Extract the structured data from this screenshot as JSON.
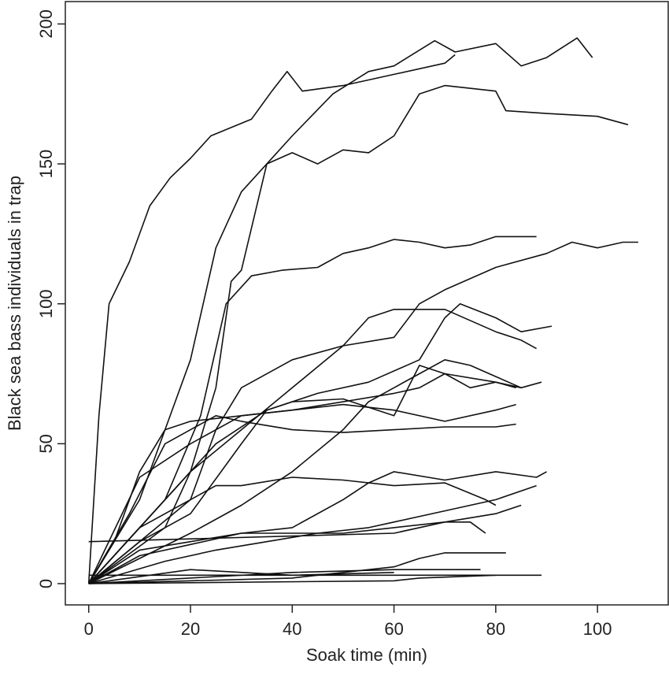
{
  "chart_data": {
    "type": "line",
    "x_label": "Soak time (min)",
    "y_label": "Black sea bass individuals in trap",
    "xlim": [
      -4.6,
      113.9
    ],
    "ylim": [
      -7.6,
      208
    ],
    "xticks": [
      0,
      20,
      40,
      60,
      80,
      100
    ],
    "yticks": [
      0,
      50,
      100,
      150,
      200
    ],
    "color": "#111111",
    "series": [
      {
        "x": [
          0,
          2,
          4,
          8,
          12,
          16,
          20,
          24,
          28,
          32,
          36,
          39,
          42,
          50,
          60,
          70,
          72
        ],
        "values": [
          0,
          60,
          100,
          115,
          135,
          145,
          152,
          160,
          163,
          166,
          176,
          183,
          176,
          178,
          182,
          186,
          189
        ]
      },
      {
        "x": [
          0,
          10,
          20,
          25,
          30,
          35,
          40,
          45,
          50,
          55,
          60,
          65,
          70,
          80,
          82,
          90,
          100,
          106
        ],
        "values": [
          0,
          30,
          80,
          120,
          140,
          150,
          154,
          150,
          155,
          154,
          160,
          175,
          178,
          176,
          169,
          168,
          167,
          164
        ]
      },
      {
        "x": [
          0,
          15,
          20,
          25,
          28,
          30,
          35,
          40,
          48,
          55,
          60,
          68,
          72,
          80,
          85,
          90,
          96,
          99
        ],
        "values": [
          0,
          20,
          40,
          70,
          108,
          112,
          150,
          160,
          175,
          183,
          185,
          194,
          190,
          193,
          185,
          188,
          195,
          188
        ]
      },
      {
        "x": [
          0,
          15,
          22,
          27,
          32,
          38,
          45,
          50,
          55,
          60,
          65,
          70,
          75,
          80,
          88
        ],
        "values": [
          0,
          30,
          60,
          100,
          110,
          112,
          113,
          118,
          120,
          123,
          122,
          120,
          121,
          124,
          124
        ]
      },
      {
        "x": [
          0,
          20,
          25,
          30,
          40,
          50,
          60,
          65,
          70,
          80,
          90,
          95,
          100,
          105,
          108
        ],
        "values": [
          0,
          30,
          55,
          70,
          80,
          85,
          88,
          100,
          105,
          113,
          118,
          122,
          120,
          122,
          122
        ]
      },
      {
        "x": [
          0,
          10,
          20,
          30,
          40,
          50,
          55,
          60,
          70,
          80,
          85,
          88
        ],
        "values": [
          0,
          20,
          40,
          55,
          70,
          85,
          95,
          98,
          98,
          90,
          87,
          84
        ]
      },
      {
        "x": [
          0,
          15,
          25,
          35,
          45,
          55,
          65,
          70,
          73,
          80,
          85,
          91
        ],
        "values": [
          0,
          30,
          50,
          62,
          68,
          72,
          80,
          95,
          100,
          95,
          90,
          92
        ]
      },
      {
        "x": [
          0,
          20,
          30,
          40,
          50,
          55,
          60,
          65,
          70,
          75,
          80,
          85,
          89
        ],
        "values": [
          0,
          18,
          28,
          40,
          55,
          65,
          70,
          75,
          80,
          78,
          74,
          70,
          72
        ]
      },
      {
        "x": [
          0,
          10,
          20,
          30,
          40,
          50,
          60,
          65,
          70,
          80,
          85
        ],
        "values": [
          0,
          38,
          50,
          60,
          62,
          65,
          68,
          70,
          75,
          72,
          70
        ]
      },
      {
        "x": [
          0,
          5,
          10,
          15,
          20,
          30,
          40,
          50,
          60,
          70,
          80,
          84
        ],
        "values": [
          0,
          15,
          40,
          55,
          58,
          60,
          62,
          64,
          62,
          58,
          62,
          64
        ]
      },
      {
        "x": [
          0,
          8,
          15,
          20,
          25,
          30,
          40,
          50,
          60,
          70,
          80,
          84
        ],
        "values": [
          0,
          25,
          50,
          55,
          60,
          58,
          55,
          54,
          55,
          56,
          56,
          57
        ]
      },
      {
        "x": [
          0,
          10,
          20,
          25,
          30,
          40,
          50,
          60,
          70,
          78,
          80
        ],
        "values": [
          0,
          20,
          30,
          35,
          35,
          38,
          37,
          35,
          36,
          30,
          28
        ]
      },
      {
        "x": [
          0,
          10,
          20,
          30,
          40,
          50,
          55,
          60,
          70,
          80,
          88,
          90
        ],
        "values": [
          0,
          12,
          15,
          18,
          20,
          30,
          36,
          40,
          37,
          40,
          38,
          40
        ]
      },
      {
        "x": [
          0,
          15,
          25,
          35,
          45,
          55,
          60,
          70,
          80,
          88
        ],
        "values": [
          0,
          8,
          12,
          15,
          18,
          20,
          22,
          26,
          30,
          35
        ]
      },
      {
        "x": [
          0,
          10,
          20,
          30,
          40,
          50,
          60,
          70,
          75,
          78
        ],
        "values": [
          0,
          10,
          14,
          18,
          18,
          18,
          20,
          22,
          22,
          18
        ]
      },
      {
        "x": [
          0,
          20,
          40,
          60,
          70,
          80,
          85
        ],
        "values": [
          15,
          16,
          17,
          18,
          22,
          25,
          28
        ]
      },
      {
        "x": [
          0,
          40,
          60,
          65,
          70,
          82
        ],
        "values": [
          0,
          2,
          6,
          9,
          11,
          11
        ]
      },
      {
        "x": [
          0,
          40,
          60,
          77
        ],
        "values": [
          0,
          4,
          5,
          5
        ]
      },
      {
        "x": [
          0,
          89
        ],
        "values": [
          3,
          3
        ]
      },
      {
        "x": [
          0,
          60,
          65,
          80
        ],
        "values": [
          0,
          1,
          2,
          3
        ]
      },
      {
        "x": [
          0,
          20,
          40,
          60
        ],
        "values": [
          0,
          5,
          3,
          4
        ]
      },
      {
        "x": [
          0,
          10,
          20,
          30,
          35,
          40,
          50,
          60,
          65,
          70,
          75,
          80,
          84
        ],
        "values": [
          0,
          15,
          25,
          50,
          62,
          65,
          66,
          60,
          78,
          75,
          70,
          72,
          70
        ]
      }
    ]
  }
}
